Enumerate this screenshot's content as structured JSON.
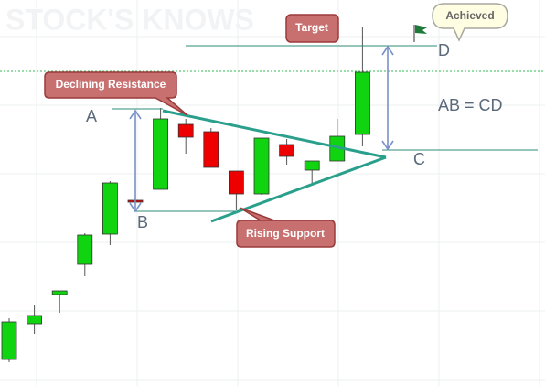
{
  "chart_data": {
    "type": "candlestick",
    "watermark": "STOCK'S KNOWS",
    "categories": [
      null,
      null,
      null,
      null,
      null,
      null,
      null,
      null,
      null,
      null,
      null,
      null,
      null,
      null,
      null
    ],
    "open": [
      29,
      68,
      100,
      133,
      166,
      203,
      215,
      286,
      278,
      235,
      210,
      264,
      236,
      246,
      275
    ],
    "close": [
      70,
      77,
      104,
      165,
      222,
      201,
      292,
      272,
      239,
      210,
      271,
      251,
      246,
      273,
      343
    ],
    "high": [
      74,
      89,
      104,
      167,
      224,
      204,
      304,
      292,
      282,
      235,
      271,
      270,
      246,
      292,
      392
    ],
    "low": [
      26,
      57,
      80,
      120,
      154,
      201,
      215,
      254,
      239,
      192,
      209,
      242,
      222,
      246,
      262
    ],
    "up_color": "#11d411",
    "down_color": "#ee0000",
    "ylim": [
      0,
      422
    ],
    "annotations": {
      "resistance": "Declining Resistance",
      "support": "Rising Support",
      "target": "Target",
      "achieved": "Achieved",
      "a": "A",
      "b": "B",
      "c": "C",
      "d": "D",
      "equation": "AB = CD"
    }
  }
}
